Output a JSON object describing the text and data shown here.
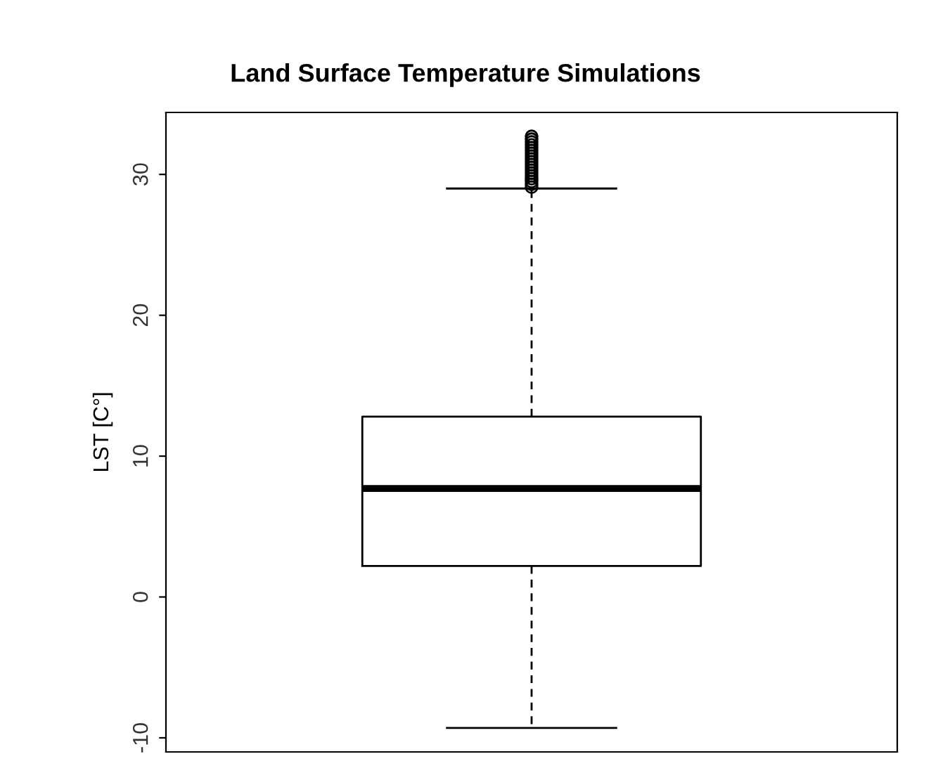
{
  "chart_data": {
    "type": "box",
    "title": "Land Surface Temperature Simulations",
    "ylabel": "LST [C°]",
    "categories": [
      null
    ],
    "boxes": [
      {
        "low": -9.3,
        "q1": 2.2,
        "median": 7.7,
        "q3": 12.8,
        "high": 29.0,
        "outliers": [
          29.1,
          29.3,
          29.5,
          29.7,
          29.9,
          30.1,
          30.3,
          30.5,
          30.7,
          30.9,
          31.1,
          31.3,
          31.5,
          31.7,
          31.9,
          32.1,
          32.3,
          32.5,
          32.7
        ]
      }
    ],
    "color": "#000000",
    "ylim": [
      -11.0,
      34.4
    ],
    "yticks": [
      -10,
      0,
      10,
      20,
      30
    ],
    "grid": false
  }
}
